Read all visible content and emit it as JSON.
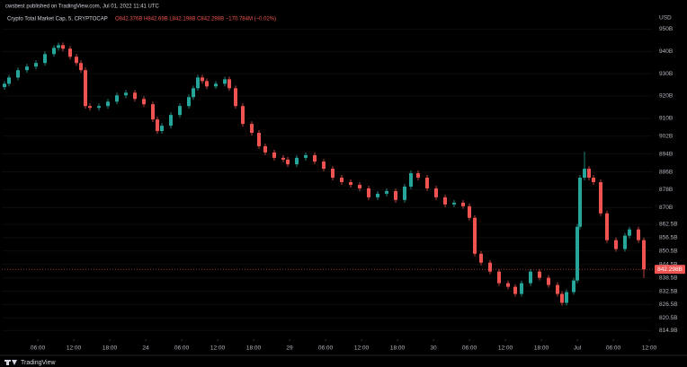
{
  "header": "cwsbest published on TradingView.com, Jul 01, 2022 11:41 UTC",
  "footer": "TradingView",
  "chart_data": {
    "type": "candlestick",
    "title": "Crypto Total Market Cap, 5, CRYPTOCAP",
    "ohlc_label": "O842.376B H842.69B L842.198B C842.298B −170.784M (−0.02%)",
    "y_axis_unit": "USD",
    "last_price_label": "842.298B",
    "up_color": "#26a69a",
    "down_color": "#ef5350",
    "x": [
      0.45,
      1.2,
      2.7,
      4.2,
      5.7,
      7.2,
      8.7,
      9.45,
      10.2,
      11.4,
      12.45,
      13.2,
      13.95,
      14.7,
      16.2,
      17.7,
      19.2,
      20.7,
      22.2,
      23.7,
      25.2,
      25.95,
      26.7,
      28.2,
      29.7,
      31.2,
      31.95,
      32.7,
      33.45,
      34.2,
      35.7,
      37.2,
      37.95,
      39,
      40.2,
      41.7,
      42.9,
      43.95,
      45.45,
      46.95,
      47.7,
      49.2,
      50.7,
      52.2,
      53.7,
      55.2,
      56.7,
      58.2,
      59.7,
      61.2,
      62.7,
      64.2,
      65.7,
      67.2,
      68.25,
      69.45,
      70.95,
      72.45,
      73.95,
      75.45,
      76.95,
      78,
      78.9,
      79.95,
      81.45,
      82.95,
      84.45,
      85.65,
      86.7,
      88.2,
      89.7,
      91.2,
      92.7,
      93.45,
      94.2,
      95.4,
      96,
      96.45,
      97.2,
      97.95,
      98.7,
      99.9,
      100.95,
      102.45,
      103.95,
      104.7,
      106.2,
      107.1
    ],
    "open": [
      924,
      925.5,
      928.3,
      931.6,
      933.2,
      934.8,
      938.8,
      941.6,
      942.8,
      941.2,
      937.6,
      934.8,
      931.6,
      915.5,
      914.7,
      915.5,
      917.5,
      920.3,
      921.5,
      918.7,
      916.3,
      909.5,
      904.3,
      906.7,
      911.5,
      915.5,
      919.5,
      923.5,
      928.3,
      926.7,
      924.3,
      925.5,
      927.5,
      923.5,
      915.5,
      907.5,
      903.5,
      897.5,
      894.7,
      892.3,
      891.5,
      889.4,
      892.3,
      893.5,
      890.6,
      887.4,
      883.4,
      881.4,
      880.2,
      878.6,
      874.6,
      876.2,
      877.4,
      873.4,
      879.4,
      885.4,
      883.4,
      878.6,
      874.6,
      871.4,
      872.2,
      870.6,
      865.4,
      849.3,
      845.3,
      841.3,
      836.1,
      834.5,
      831.3,
      836.1,
      841.3,
      838.5,
      835.3,
      831.3,
      827.3,
      832.1,
      837.3,
      861.4,
      883.4,
      887.4,
      883.4,
      881.4,
      867.4,
      855.4,
      851.4,
      857.4,
      860.2,
      855.4
    ],
    "high": [
      926.7,
      929.5,
      932.8,
      934.4,
      936,
      940,
      942.8,
      944,
      944,
      942.4,
      938.8,
      936,
      932.8,
      916.7,
      916.7,
      918.7,
      921.5,
      922.7,
      922.7,
      919.9,
      917.5,
      910.7,
      907.9,
      912.7,
      916.7,
      920.7,
      924.7,
      929.5,
      929.5,
      927.9,
      926.7,
      928.7,
      928.7,
      924.7,
      916.7,
      908.7,
      904.7,
      898.7,
      895.9,
      893.5,
      892.7,
      893.5,
      894.7,
      894.7,
      891.8,
      888.6,
      884.6,
      882.6,
      881.4,
      879.8,
      877.4,
      878.6,
      878.6,
      880.6,
      886.6,
      886.6,
      884.6,
      879.8,
      875.8,
      873.4,
      873.4,
      871.8,
      866.6,
      850.5,
      846.5,
      842.5,
      837.3,
      835.7,
      837.3,
      842.5,
      842.5,
      839.7,
      836.5,
      832.5,
      833.3,
      838.5,
      862.6,
      884.6,
      895,
      888.6,
      884.6,
      882.6,
      868.6,
      856.6,
      858.6,
      861.4,
      861.4,
      856.6
    ],
    "low": [
      922.8,
      924.3,
      927.1,
      930.4,
      932,
      933.6,
      937.6,
      940.4,
      940,
      936.4,
      933.6,
      930.4,
      914.3,
      913.5,
      913.5,
      914.3,
      916.3,
      919.1,
      917.5,
      915.1,
      908.3,
      903.1,
      903.1,
      905.5,
      910.3,
      914.3,
      918.3,
      922.3,
      925.5,
      923.1,
      923.1,
      924.3,
      922.3,
      914.3,
      906.3,
      902.3,
      896.3,
      893.5,
      891.1,
      890.3,
      888.2,
      888.2,
      891.1,
      889.4,
      886.2,
      882.2,
      880.2,
      879,
      877.4,
      873.4,
      873.4,
      875,
      872.2,
      872.2,
      878.2,
      882.2,
      877.4,
      873.4,
      870.2,
      870.2,
      869.4,
      864.2,
      848.1,
      844.1,
      840.1,
      834.9,
      833.3,
      830.1,
      830.1,
      834.9,
      837.3,
      834.1,
      830.1,
      826.1,
      826.1,
      830.9,
      836.1,
      860.2,
      882.2,
      882.2,
      880.2,
      866.2,
      854.2,
      850.2,
      850.2,
      856.2,
      854.2,
      838.5
    ],
    "close": [
      925.5,
      928.3,
      931.6,
      933.2,
      934.8,
      938.8,
      941.6,
      942.8,
      941.2,
      937.6,
      934.8,
      931.6,
      915.5,
      914.7,
      915.5,
      917.5,
      920.3,
      921.5,
      918.7,
      916.3,
      909.5,
      904.3,
      906.7,
      911.5,
      915.5,
      919.5,
      923.5,
      928.3,
      926.7,
      924.3,
      925.5,
      927.5,
      923.5,
      915.5,
      907.5,
      903.5,
      897.5,
      894.7,
      892.3,
      891.5,
      889.4,
      892.3,
      893.5,
      890.6,
      887.4,
      883.4,
      881.4,
      880.2,
      878.6,
      874.6,
      876.2,
      877.4,
      873.4,
      879.4,
      885.4,
      883.4,
      878.6,
      874.6,
      871.4,
      872.2,
      870.6,
      865.4,
      849.3,
      845.3,
      841.3,
      836.1,
      834.5,
      831.3,
      836.1,
      841.3,
      838.5,
      835.3,
      831.3,
      827.3,
      832.1,
      837.3,
      861.4,
      883.4,
      887.4,
      883.4,
      881.4,
      867.4,
      855.4,
      851.4,
      857.4,
      860.2,
      855.4,
      842.3
    ],
    "xlim": [
      0,
      108.6
    ],
    "xticks": [
      {
        "value": 6,
        "label": "06:00"
      },
      {
        "value": 12,
        "label": "12:00"
      },
      {
        "value": 18,
        "label": "18:00"
      },
      24,
      {
        "value": 30,
        "label": "06:00"
      },
      {
        "value": 36,
        "label": "12:00"
      },
      {
        "value": 42,
        "label": "18:00"
      },
      {
        "value": 48,
        "label": "29"
      },
      {
        "value": 54,
        "label": "06:00"
      },
      {
        "value": 60,
        "label": "12:00"
      },
      {
        "value": 66,
        "label": "18:00"
      },
      {
        "value": 72,
        "label": "30"
      },
      {
        "value": 78,
        "label": "06:00"
      },
      {
        "value": 84,
        "label": "12:00"
      },
      {
        "value": 90,
        "label": "18:00"
      },
      {
        "value": 96,
        "label": "Jul"
      },
      {
        "value": 102,
        "label": "06:00"
      },
      {
        "value": 108,
        "label": "12:00"
      }
    ],
    "ylim": [
      811,
      955
    ],
    "yticks": [
      {
        "value": 950,
        "label": "950B"
      },
      {
        "value": 940,
        "label": "940B"
      },
      {
        "value": 930,
        "label": "930B"
      },
      {
        "value": 920,
        "label": "920B"
      },
      {
        "value": 910,
        "label": "910B"
      },
      {
        "value": 902,
        "label": "902B"
      },
      {
        "value": 894,
        "label": "894B"
      },
      {
        "value": 886,
        "label": "886B"
      },
      {
        "value": 878,
        "label": "878B"
      },
      {
        "value": 870,
        "label": "870B"
      },
      {
        "value": 862.5,
        "label": "862.5B"
      },
      {
        "value": 856.5,
        "label": "856.5B"
      },
      {
        "value": 850.5,
        "label": "850.5B"
      },
      {
        "value": 844.5,
        "label": "844.5B"
      },
      {
        "value": 838.5,
        "label": "838.5B"
      },
      {
        "value": 832.5,
        "label": "832.5B"
      },
      {
        "value": 826.5,
        "label": "826.5B"
      },
      {
        "value": 820.5,
        "label": "820.5B"
      },
      {
        "value": 814.9,
        "label": "814.9B"
      }
    ]
  }
}
